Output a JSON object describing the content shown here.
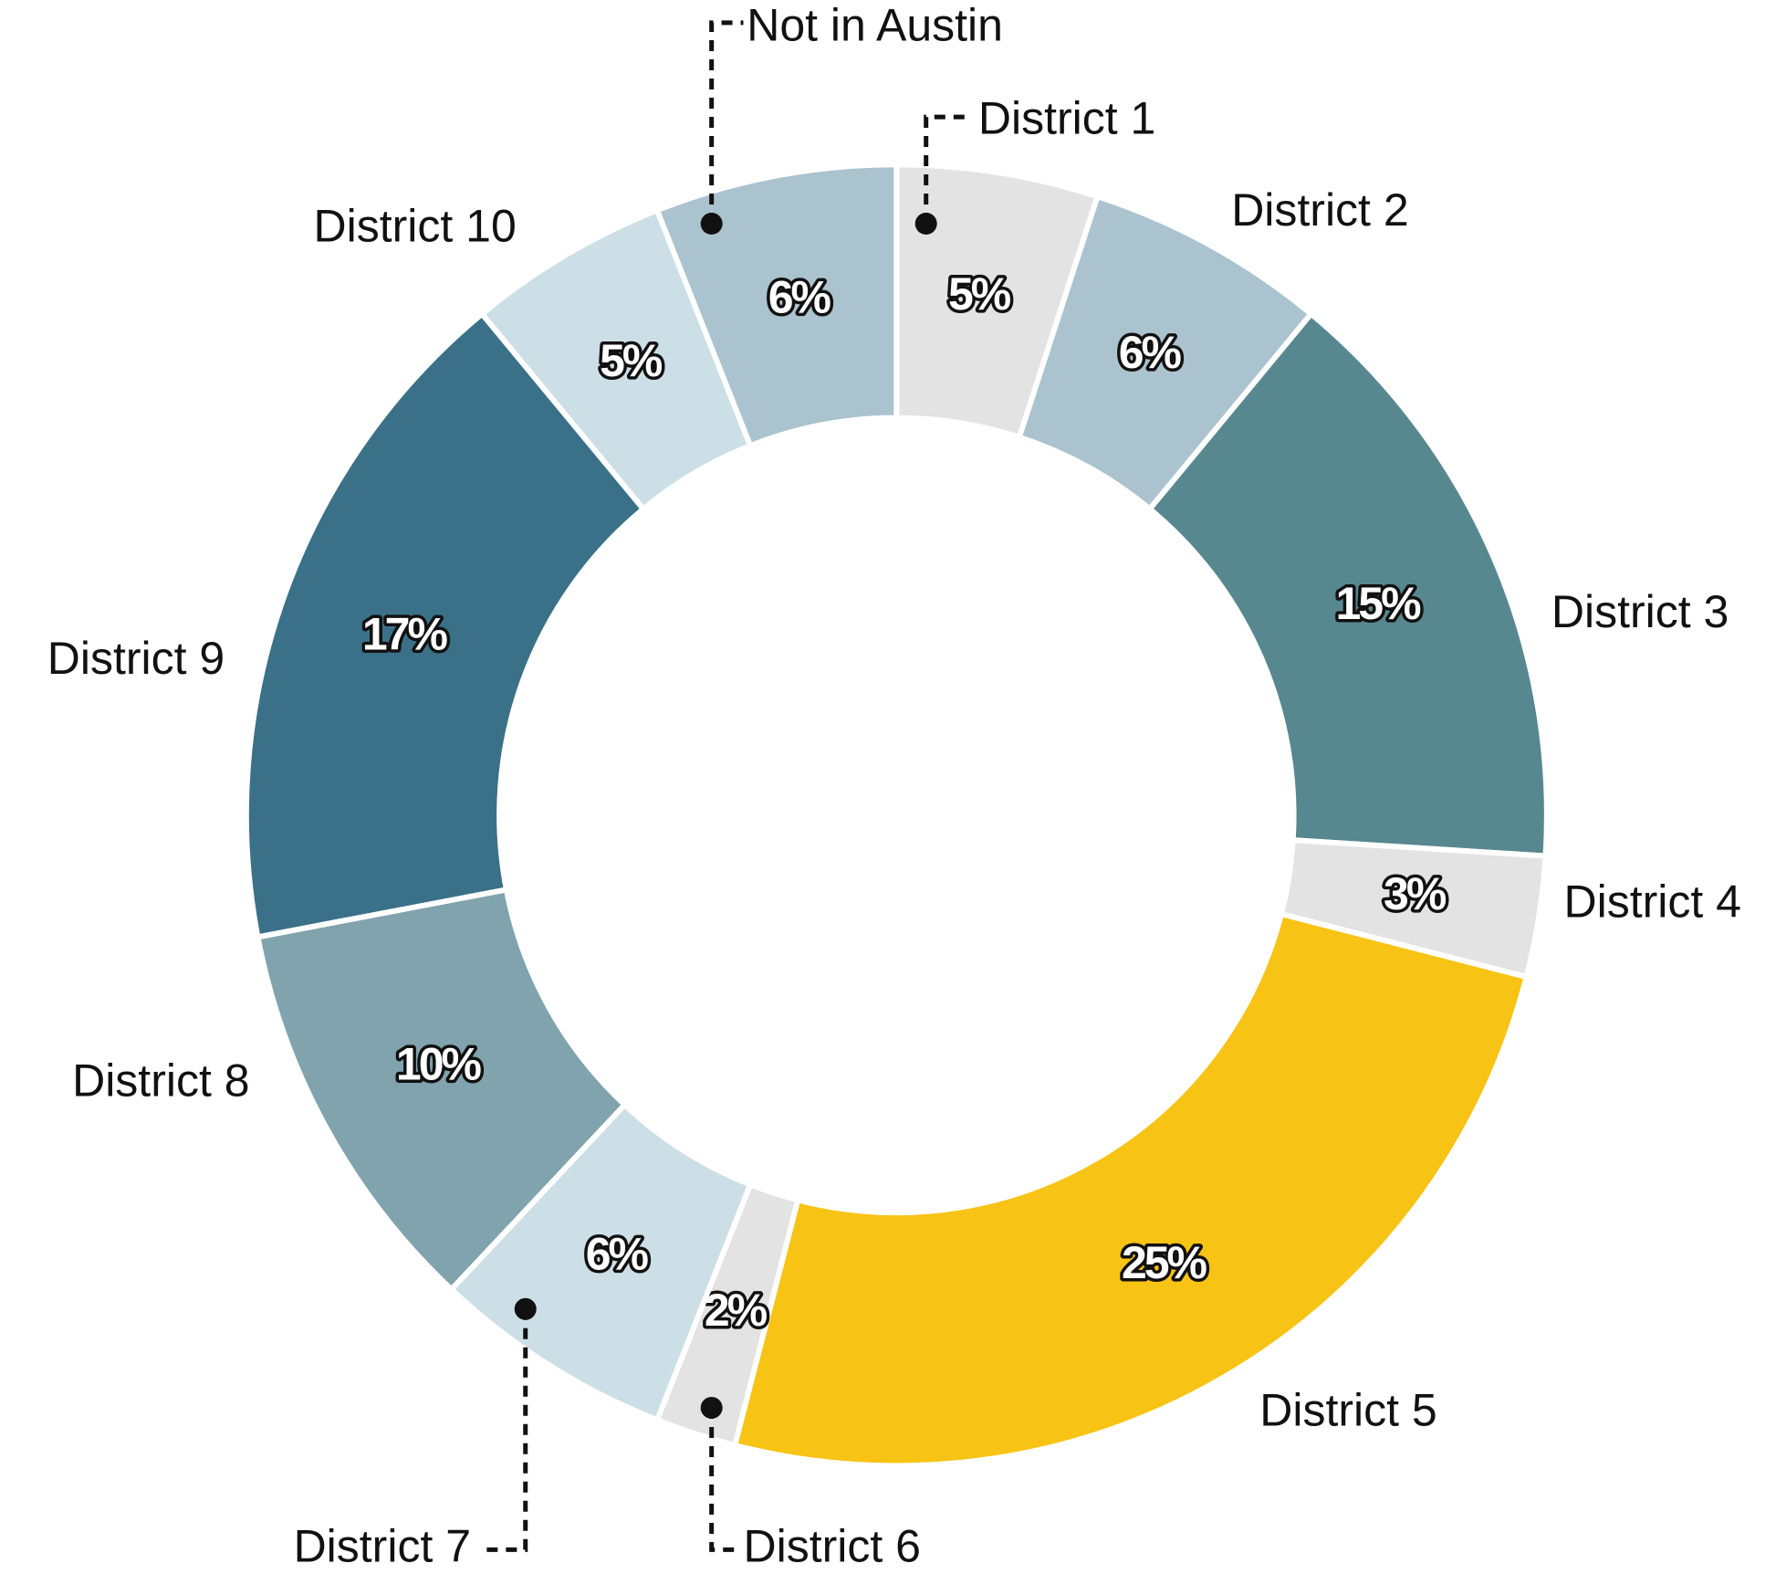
{
  "chart_data": {
    "type": "pie",
    "categories": [
      "District 1",
      "District 2",
      "District 3",
      "District 4",
      "District 5",
      "District 6",
      "District 7",
      "District 8",
      "District 9",
      "District 10",
      "Not in Austin"
    ],
    "values": [
      5,
      6,
      15,
      3,
      25,
      2,
      6,
      10,
      17,
      5,
      6
    ],
    "value_labels": [
      "5%",
      "6%",
      "15%",
      "3%",
      "25%",
      "2%",
      "6%",
      "10%",
      "17%",
      "5%",
      "6%"
    ],
    "colors": [
      "#e3e3e3",
      "#abc3cf",
      "#58888f",
      "#e3e3e3",
      "#f7c315",
      "#e3e3e3",
      "#cddfe6",
      "#80a3ae",
      "#3a7189",
      "#cddfe6",
      "#abc3cf"
    ],
    "donut": true
  }
}
